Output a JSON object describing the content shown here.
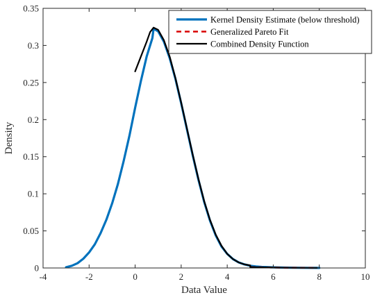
{
  "chart_data": {
    "type": "line",
    "title": "",
    "xlabel": "Data Value",
    "ylabel": "Density",
    "xlim": [
      -4,
      10
    ],
    "ylim": [
      0,
      0.35
    ],
    "xticks": [
      "-4",
      "-2",
      "0",
      "2",
      "4",
      "6",
      "8",
      "10"
    ],
    "yticks": [
      "0",
      "0.05",
      "0.1",
      "0.15",
      "0.2",
      "0.25",
      "0.3",
      "0.35"
    ],
    "grid": false,
    "legend_position": "top-right",
    "series": [
      {
        "name": "Kernel Density Estimate (below threshold)",
        "color": "#0072BD",
        "style": "solid",
        "points": [
          [
            -3.0,
            0.001
          ],
          [
            -2.75,
            0.003
          ],
          [
            -2.5,
            0.0065
          ],
          [
            -2.25,
            0.0125
          ],
          [
            -2.0,
            0.021
          ],
          [
            -1.75,
            0.032
          ],
          [
            -1.5,
            0.047
          ],
          [
            -1.25,
            0.065
          ],
          [
            -1.0,
            0.087
          ],
          [
            -0.75,
            0.113
          ],
          [
            -0.5,
            0.144
          ],
          [
            -0.25,
            0.178
          ],
          [
            0.0,
            0.216
          ],
          [
            0.25,
            0.252
          ],
          [
            0.5,
            0.285
          ],
          [
            0.75,
            0.31
          ],
          [
            0.8,
            0.3225
          ],
          [
            1.0,
            0.319
          ],
          [
            1.25,
            0.305
          ],
          [
            1.5,
            0.283
          ],
          [
            1.75,
            0.255
          ],
          [
            2.0,
            0.222
          ],
          [
            2.25,
            0.187
          ],
          [
            2.5,
            0.152
          ],
          [
            2.75,
            0.119
          ],
          [
            3.0,
            0.089
          ],
          [
            3.25,
            0.064
          ],
          [
            3.5,
            0.044
          ],
          [
            3.75,
            0.029
          ],
          [
            4.0,
            0.019
          ],
          [
            4.25,
            0.012
          ],
          [
            4.5,
            0.0075
          ],
          [
            4.75,
            0.0048
          ],
          [
            5.0,
            0.003
          ],
          [
            5.25,
            0.002
          ],
          [
            5.5,
            0.0014
          ],
          [
            6.0,
            0.0008
          ],
          [
            6.5,
            0.0005
          ],
          [
            7.0,
            0.0003
          ],
          [
            7.5,
            0.0002
          ],
          [
            8.0,
            0.0001
          ]
        ]
      },
      {
        "name": "Generalized Pareto Fit",
        "color": "#D90000",
        "style": "dashed",
        "points": [
          [
            5.0,
            0.0012
          ],
          [
            5.5,
            0.0009
          ],
          [
            6.0,
            0.0006
          ],
          [
            6.5,
            0.0004
          ],
          [
            7.0,
            0.0003
          ],
          [
            7.5,
            0.0002
          ],
          [
            7.9,
            0.00015
          ]
        ]
      },
      {
        "name": "Combined Density Function",
        "color": "#000000",
        "style": "solid",
        "points": [
          [
            0.0,
            0.265
          ],
          [
            0.25,
            0.285
          ],
          [
            0.5,
            0.305
          ],
          [
            0.65,
            0.318
          ],
          [
            0.8,
            0.324
          ],
          [
            1.0,
            0.321
          ],
          [
            1.25,
            0.307
          ],
          [
            1.5,
            0.285
          ],
          [
            1.75,
            0.256
          ],
          [
            2.0,
            0.223
          ],
          [
            2.25,
            0.188
          ],
          [
            2.5,
            0.153
          ],
          [
            2.75,
            0.12
          ],
          [
            3.0,
            0.09
          ],
          [
            3.25,
            0.065
          ],
          [
            3.5,
            0.045
          ],
          [
            3.75,
            0.03
          ],
          [
            4.0,
            0.019
          ],
          [
            4.25,
            0.012
          ],
          [
            4.5,
            0.0075
          ],
          [
            4.75,
            0.0048
          ],
          [
            5.0,
            0.0035
          ],
          [
            5.0,
            0.0012
          ],
          [
            5.5,
            0.0009
          ],
          [
            6.0,
            0.0006
          ],
          [
            6.5,
            0.0004
          ],
          [
            7.0,
            0.0003
          ],
          [
            7.5,
            0.0002
          ],
          [
            7.9,
            0.00015
          ]
        ]
      }
    ]
  }
}
